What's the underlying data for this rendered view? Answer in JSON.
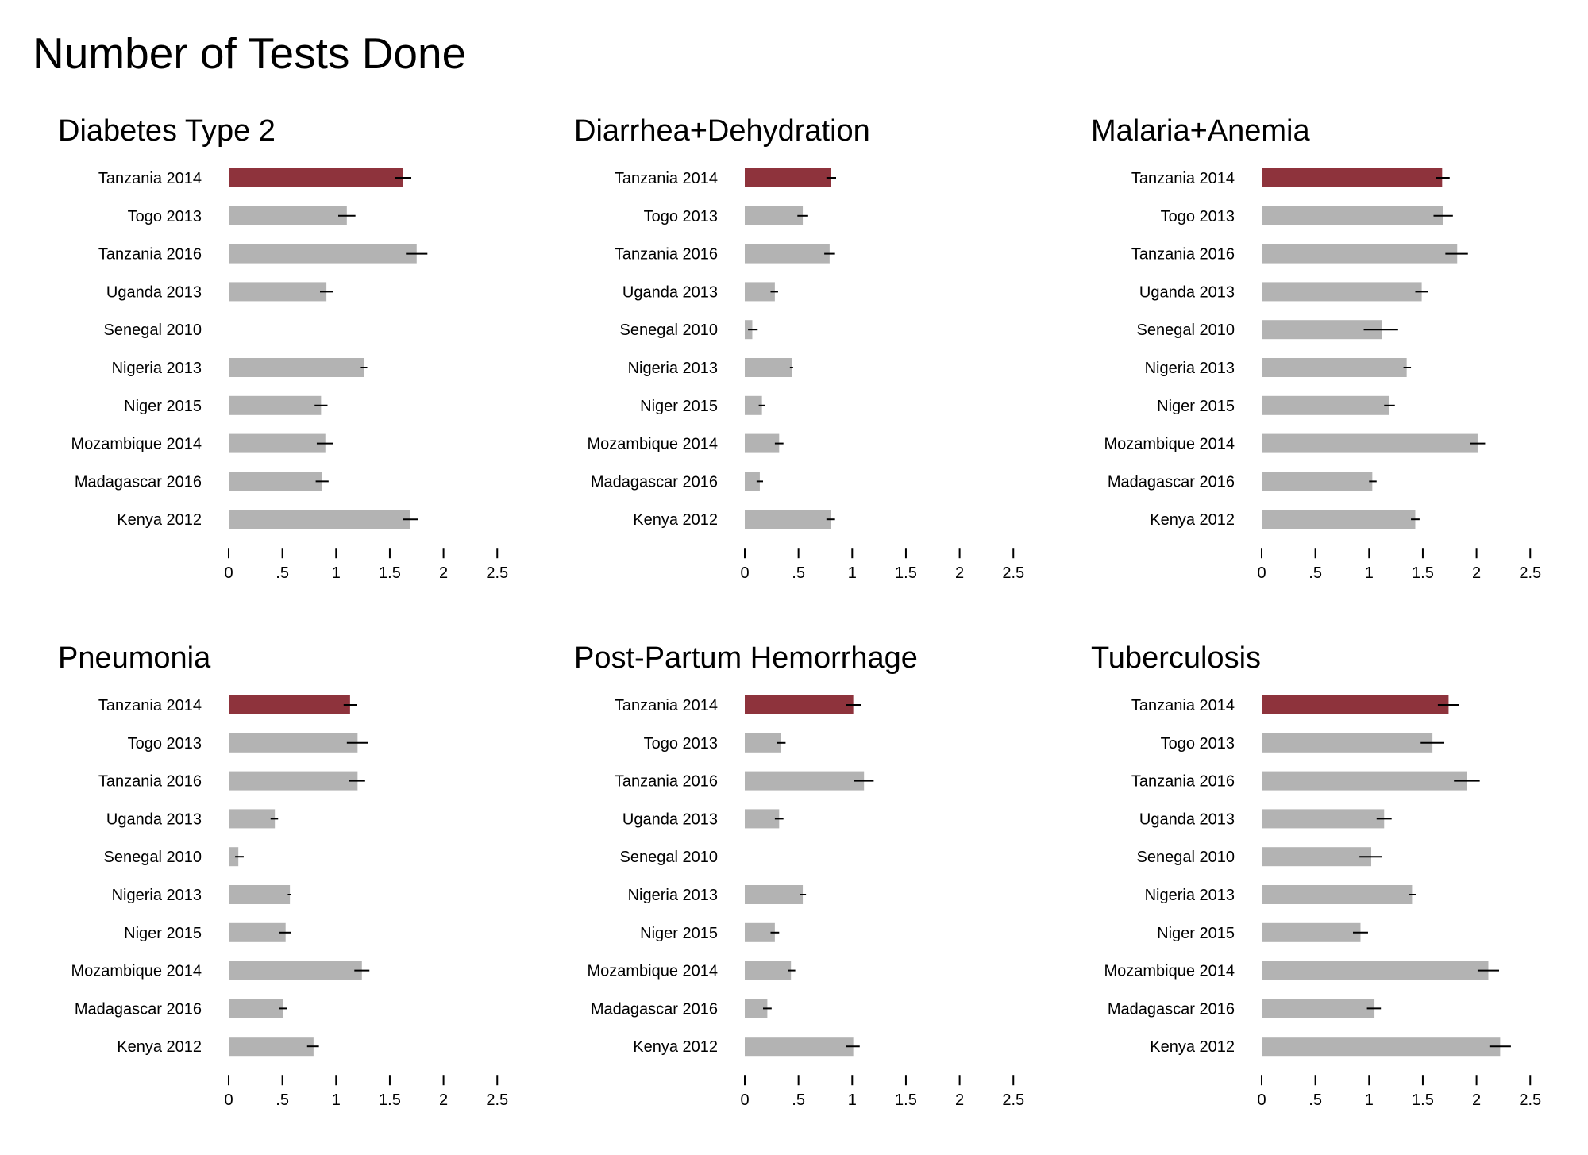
{
  "title": "Number of Tests Done",
  "colors": {
    "highlight": "#8e333c",
    "bar": "#b3b3b3",
    "error_bar": "#000000"
  },
  "chart_data": [
    {
      "type": "bar",
      "orientation": "horizontal",
      "title": "Diabetes Type 2",
      "categories": [
        "Tanzania 2014",
        "Togo 2013",
        "Tanzania 2016",
        "Uganda 2013",
        "Senegal 2010",
        "Nigeria 2013",
        "Niger 2015",
        "Mozambique 2014",
        "Madagascar 2016",
        "Kenya 2012"
      ],
      "values": [
        1.62,
        1.1,
        1.75,
        0.91,
        null,
        1.26,
        0.86,
        0.9,
        0.87,
        1.69
      ],
      "error_low": [
        1.55,
        1.02,
        1.65,
        0.85,
        null,
        1.23,
        0.8,
        0.82,
        0.81,
        1.62
      ],
      "error_high": [
        1.7,
        1.18,
        1.85,
        0.97,
        null,
        1.29,
        0.92,
        0.97,
        0.93,
        1.76
      ],
      "highlight": "Tanzania 2014",
      "xlim": [
        0,
        2.5
      ],
      "xticks": [
        "0",
        ".5",
        "1",
        "1.5",
        "2",
        "2.5"
      ]
    },
    {
      "type": "bar",
      "orientation": "horizontal",
      "title": "Diarrhea+Dehydration",
      "categories": [
        "Tanzania 2014",
        "Togo 2013",
        "Tanzania 2016",
        "Uganda 2013",
        "Senegal 2010",
        "Nigeria 2013",
        "Niger 2015",
        "Mozambique 2014",
        "Madagascar 2016",
        "Kenya 2012"
      ],
      "values": [
        0.8,
        0.54,
        0.79,
        0.28,
        0.07,
        0.44,
        0.16,
        0.32,
        0.14,
        0.8
      ],
      "error_low": [
        0.76,
        0.49,
        0.74,
        0.24,
        0.03,
        0.42,
        0.13,
        0.28,
        0.11,
        0.76
      ],
      "error_high": [
        0.85,
        0.59,
        0.84,
        0.31,
        0.12,
        0.45,
        0.19,
        0.36,
        0.17,
        0.84
      ],
      "highlight": "Tanzania 2014",
      "xlim": [
        0,
        2.5
      ],
      "xticks": [
        "0",
        ".5",
        "1",
        "1.5",
        "2",
        "2.5"
      ]
    },
    {
      "type": "bar",
      "orientation": "horizontal",
      "title": "Malaria+Anemia",
      "categories": [
        "Tanzania 2014",
        "Togo 2013",
        "Tanzania 2016",
        "Uganda 2013",
        "Senegal 2010",
        "Nigeria 2013",
        "Niger 2015",
        "Mozambique 2014",
        "Madagascar 2016",
        "Kenya 2012"
      ],
      "values": [
        1.68,
        1.69,
        1.82,
        1.49,
        1.12,
        1.35,
        1.19,
        2.01,
        1.03,
        1.43
      ],
      "error_low": [
        1.62,
        1.6,
        1.71,
        1.43,
        0.95,
        1.32,
        1.14,
        1.94,
        1.0,
        1.39
      ],
      "error_high": [
        1.75,
        1.78,
        1.92,
        1.55,
        1.27,
        1.39,
        1.24,
        2.08,
        1.07,
        1.47
      ],
      "highlight": "Tanzania 2014",
      "xlim": [
        0,
        2.5
      ],
      "xticks": [
        "0",
        ".5",
        "1",
        "1.5",
        "2",
        "2.5"
      ]
    },
    {
      "type": "bar",
      "orientation": "horizontal",
      "title": "Pneumonia",
      "categories": [
        "Tanzania 2014",
        "Togo 2013",
        "Tanzania 2016",
        "Uganda 2013",
        "Senegal 2010",
        "Nigeria 2013",
        "Niger 2015",
        "Mozambique 2014",
        "Madagascar 2016",
        "Kenya 2012"
      ],
      "values": [
        1.13,
        1.2,
        1.2,
        0.43,
        0.09,
        0.57,
        0.53,
        1.24,
        0.51,
        0.79
      ],
      "error_low": [
        1.07,
        1.1,
        1.12,
        0.39,
        0.06,
        0.55,
        0.47,
        1.17,
        0.47,
        0.73
      ],
      "error_high": [
        1.19,
        1.3,
        1.27,
        0.46,
        0.14,
        0.58,
        0.58,
        1.31,
        0.54,
        0.84
      ],
      "highlight": "Tanzania 2014",
      "xlim": [
        0,
        2.5
      ],
      "xticks": [
        "0",
        ".5",
        "1",
        "1.5",
        "2",
        "2.5"
      ]
    },
    {
      "type": "bar",
      "orientation": "horizontal",
      "title": "Post-Partum Hemorrhage",
      "categories": [
        "Tanzania 2014",
        "Togo 2013",
        "Tanzania 2016",
        "Uganda 2013",
        "Senegal 2010",
        "Nigeria 2013",
        "Niger 2015",
        "Mozambique 2014",
        "Madagascar 2016",
        "Kenya 2012"
      ],
      "values": [
        1.01,
        0.34,
        1.11,
        0.32,
        null,
        0.54,
        0.28,
        0.43,
        0.21,
        1.01
      ],
      "error_low": [
        0.94,
        0.3,
        1.02,
        0.28,
        null,
        0.51,
        0.24,
        0.4,
        0.17,
        0.94
      ],
      "error_high": [
        1.08,
        0.38,
        1.2,
        0.36,
        null,
        0.57,
        0.32,
        0.47,
        0.25,
        1.07
      ],
      "highlight": "Tanzania 2014",
      "xlim": [
        0,
        2.5
      ],
      "xticks": [
        "0",
        ".5",
        "1",
        "1.5",
        "2",
        "2.5"
      ]
    },
    {
      "type": "bar",
      "orientation": "horizontal",
      "title": "Tuberculosis",
      "categories": [
        "Tanzania 2014",
        "Togo 2013",
        "Tanzania 2016",
        "Uganda 2013",
        "Senegal 2010",
        "Nigeria 2013",
        "Niger 2015",
        "Mozambique 2014",
        "Madagascar 2016",
        "Kenya 2012"
      ],
      "values": [
        1.74,
        1.59,
        1.91,
        1.14,
        1.02,
        1.4,
        0.92,
        2.11,
        1.05,
        2.22
      ],
      "error_low": [
        1.64,
        1.48,
        1.79,
        1.07,
        0.91,
        1.37,
        0.85,
        2.01,
        0.98,
        2.12
      ],
      "error_high": [
        1.84,
        1.7,
        2.03,
        1.21,
        1.12,
        1.44,
        0.99,
        2.21,
        1.11,
        2.32
      ],
      "highlight": "Tanzania 2014",
      "xlim": [
        0,
        2.5
      ],
      "xticks": [
        "0",
        ".5",
        "1",
        "1.5",
        "2",
        "2.5"
      ]
    }
  ]
}
